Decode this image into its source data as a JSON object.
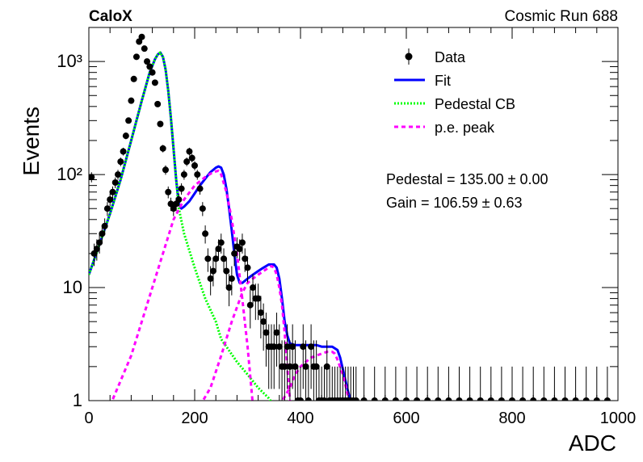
{
  "header": {
    "left_label": "CaloX",
    "right_label": "Cosmic Run 688"
  },
  "legend": {
    "items": [
      {
        "label": "Data",
        "style": "marker",
        "color": "#000000"
      },
      {
        "label": "Fit",
        "style": "solid",
        "color": "#0000ff"
      },
      {
        "label": "Pedestal CB",
        "style": "dotted",
        "color": "#00ff00"
      },
      {
        "label": "p.e. peak",
        "style": "dashed",
        "color": "#ff00ff"
      }
    ]
  },
  "stats": {
    "pedestal": "Pedestal = 135.00 ± 0.00",
    "gain": "Gain = 106.59 ± 0.63"
  },
  "chart_data": {
    "type": "scatter",
    "title": "",
    "xlabel": "ADC",
    "ylabel": "Events",
    "xlim": [
      0,
      1000
    ],
    "ylim": [
      1,
      2000
    ],
    "yscale": "log",
    "grid": false,
    "legend_position": "top-right",
    "x_ticks": [
      {
        "value": 0,
        "label": "0"
      },
      {
        "value": 200,
        "label": "200"
      },
      {
        "value": 400,
        "label": "400"
      },
      {
        "value": 600,
        "label": "600"
      },
      {
        "value": 800,
        "label": "800"
      },
      {
        "value": 1000,
        "label": "1000"
      }
    ],
    "y_ticks": [
      {
        "value": 1,
        "label": "1"
      },
      {
        "value": 10,
        "label": "10"
      },
      {
        "value": 100,
        "label": "10²"
      },
      {
        "value": 1000,
        "label": "10³"
      }
    ],
    "series": [
      {
        "name": "Data",
        "kind": "points",
        "color": "#000000",
        "x": [
          5,
          10,
          15,
          20,
          25,
          30,
          35,
          40,
          45,
          50,
          55,
          60,
          65,
          70,
          75,
          80,
          85,
          90,
          95,
          100,
          105,
          110,
          115,
          120,
          125,
          130,
          135,
          140,
          145,
          150,
          155,
          160,
          165,
          170,
          175,
          180,
          185,
          190,
          195,
          200,
          205,
          210,
          215,
          220,
          225,
          230,
          235,
          240,
          245,
          250,
          255,
          260,
          265,
          270,
          275,
          280,
          285,
          290,
          295,
          300,
          305,
          310,
          315,
          320,
          325,
          330,
          335,
          340,
          345,
          350,
          355,
          360,
          365,
          370,
          375,
          380,
          385,
          390,
          395,
          400,
          405,
          410,
          415,
          420,
          425,
          430,
          435,
          440,
          445,
          450,
          455,
          460,
          465,
          470,
          475,
          480,
          485,
          490,
          495,
          500,
          505,
          520,
          540,
          560,
          580,
          600,
          620,
          640,
          660,
          680,
          700,
          720,
          740,
          760,
          780,
          800,
          820,
          840,
          860,
          880,
          900,
          920,
          940,
          960,
          980
        ],
        "y": [
          95,
          20,
          22,
          25,
          30,
          35,
          50,
          60,
          70,
          85,
          100,
          130,
          160,
          220,
          300,
          450,
          700,
          1100,
          1500,
          1650,
          1300,
          1000,
          900,
          800,
          650,
          420,
          280,
          170,
          110,
          70,
          55,
          50,
          55,
          60,
          75,
          100,
          130,
          160,
          140,
          120,
          100,
          75,
          50,
          30,
          18,
          12,
          14,
          18,
          22,
          25,
          18,
          14,
          10,
          12,
          20,
          23,
          22,
          25,
          18,
          15,
          7,
          10,
          8,
          8,
          6,
          5,
          4,
          3,
          3,
          3,
          4,
          3,
          2,
          2,
          3,
          2,
          3,
          2,
          1,
          1,
          3,
          2,
          1,
          3,
          2,
          2,
          1,
          1,
          1,
          2,
          1,
          1,
          1,
          1,
          1,
          1,
          1,
          1,
          1,
          1,
          1,
          1,
          1,
          1,
          1,
          1,
          1,
          1,
          1,
          1,
          1,
          1,
          1,
          1,
          1,
          1,
          1,
          1,
          1,
          1,
          1,
          1,
          1,
          1,
          1
        ]
      },
      {
        "name": "Fit",
        "kind": "line",
        "color": "#0000ff",
        "x": [
          0,
          20,
          40,
          60,
          80,
          100,
          115,
          125,
          130,
          135,
          140,
          145,
          150,
          155,
          160,
          165,
          170,
          175,
          180,
          190,
          200,
          210,
          220,
          230,
          240,
          245,
          250,
          255,
          260,
          265,
          270,
          275,
          280,
          285,
          290,
          300,
          310,
          320,
          330,
          340,
          350,
          355,
          360,
          365,
          370,
          375,
          380,
          390,
          400,
          410,
          420,
          430,
          440,
          450,
          460,
          470,
          475,
          480,
          485,
          490,
          495,
          500
        ],
        "y": [
          13,
          24,
          45,
          90,
          200,
          450,
          800,
          1050,
          1150,
          1200,
          1100,
          850,
          550,
          320,
          170,
          90,
          55,
          50,
          52,
          58,
          68,
          80,
          92,
          105,
          115,
          118,
          115,
          100,
          75,
          50,
          32,
          20,
          13,
          11,
          11,
          12,
          13,
          14,
          15,
          16,
          16,
          15,
          12,
          8,
          5,
          3.8,
          3.2,
          3.1,
          3.1,
          3.1,
          3.1,
          3.1,
          3.0,
          3.0,
          3.0,
          2.8,
          2.4,
          1.9,
          1.5,
          1.2,
          1.0,
          0.9
        ]
      },
      {
        "name": "Pedestal CB",
        "kind": "line",
        "color": "#00ff00",
        "x": [
          0,
          20,
          40,
          60,
          80,
          100,
          115,
          125,
          130,
          135,
          140,
          145,
          150,
          155,
          160,
          165,
          170,
          180,
          200,
          220,
          240,
          250,
          260,
          280,
          300,
          320,
          340,
          350
        ],
        "y": [
          13,
          24,
          45,
          90,
          200,
          450,
          800,
          1050,
          1150,
          1200,
          1100,
          850,
          550,
          320,
          170,
          90,
          50,
          30,
          15,
          8,
          5,
          3.5,
          3.0,
          2.2,
          1.7,
          1.3,
          1.05,
          0.9
        ]
      },
      {
        "name": "p.e. peak",
        "kind": "line",
        "color": "#ff00ff",
        "x": [
          40,
          60,
          80,
          100,
          120,
          140,
          160,
          180,
          200,
          220,
          235,
          245,
          250,
          260,
          270,
          280,
          290,
          300,
          310,
          210,
          230,
          250,
          270,
          290,
          300,
          310,
          320,
          330,
          340,
          345,
          350,
          355,
          360,
          365,
          370,
          375,
          380,
          360,
          380,
          390,
          400,
          410,
          420,
          430,
          440,
          450,
          460,
          465,
          470,
          480,
          490,
          500
        ],
        "y": [
          0.9,
          1.5,
          2.5,
          5,
          10,
          20,
          40,
          60,
          80,
          95,
          105,
          108,
          100,
          70,
          40,
          20,
          8,
          3,
          0.9,
          0.9,
          1.3,
          2.5,
          5,
          9,
          11,
          12,
          13,
          14,
          15,
          15.5,
          15,
          13,
          10,
          7,
          4,
          2,
          1,
          0.9,
          1.3,
          1.7,
          2.0,
          2.2,
          2.4,
          2.5,
          2.6,
          2.7,
          2.7,
          2.6,
          2.3,
          1.7,
          1.1,
          0.8
        ]
      }
    ]
  }
}
